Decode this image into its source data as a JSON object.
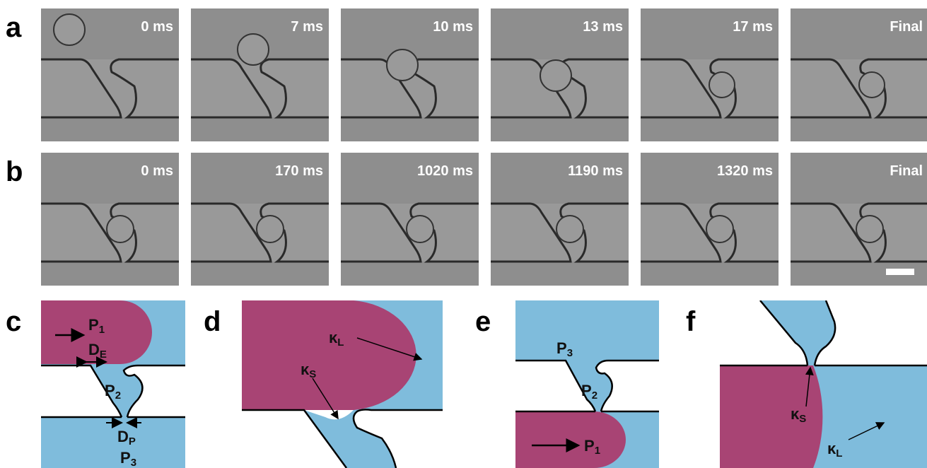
{
  "rows": [
    {
      "label": "a",
      "frames": [
        "0 ms",
        "7 ms",
        "10 ms",
        "13 ms",
        "17 ms",
        "Final"
      ]
    },
    {
      "label": "b",
      "frames": [
        "0 ms",
        "170 ms",
        "1020 ms",
        "1190 ms",
        "1320 ms",
        "Final"
      ]
    }
  ],
  "schematics": {
    "c": {
      "label": "c",
      "P1": {
        "main": "P",
        "sub": "1"
      },
      "DE": {
        "main": "D",
        "sub": "E"
      },
      "P2": {
        "main": "P",
        "sub": "2"
      },
      "DP": {
        "main": "D",
        "sub": "P"
      },
      "P3": {
        "main": "P",
        "sub": "3"
      }
    },
    "d": {
      "label": "d",
      "kL": {
        "main": "κ",
        "sub": "L"
      },
      "kS": {
        "main": "κ",
        "sub": "S"
      }
    },
    "e": {
      "label": "e",
      "P3": {
        "main": "P",
        "sub": "3"
      },
      "P2": {
        "main": "P",
        "sub": "2"
      },
      "P1": {
        "main": "P",
        "sub": "1"
      }
    },
    "f": {
      "label": "f",
      "kS": {
        "main": "κ",
        "sub": "S"
      },
      "kL": {
        "main": "κ",
        "sub": "L"
      }
    }
  }
}
